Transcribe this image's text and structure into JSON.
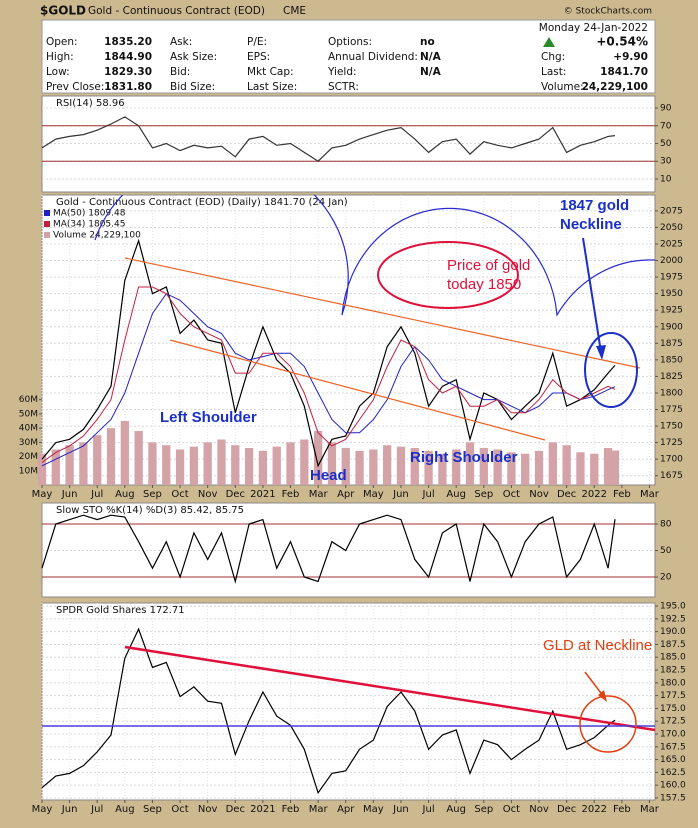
{
  "header": {
    "symbol": "$GOLD",
    "name": "Gold - Continuous Contract (EOD)",
    "exchange": "CME",
    "watermark": "© StockCharts.com",
    "date": "Monday  24-Jan-2022",
    "change_pct": "+0.54%",
    "rows": [
      [
        {
          "label": "Open:",
          "value": "1835.20"
        },
        {
          "label": "Ask:"
        },
        {
          "label": "P/E:"
        },
        {
          "label": "Options:",
          "value": "no"
        }
      ],
      [
        {
          "label": "High:",
          "value": "1844.90"
        },
        {
          "label": "Ask Size:"
        },
        {
          "label": "EPS:"
        },
        {
          "label": "Annual Dividend:",
          "value": "N/A"
        }
      ],
      [
        {
          "label": "Low:",
          "value": "1829.30"
        },
        {
          "label": "Bid:"
        },
        {
          "label": "Mkt Cap:"
        },
        {
          "label": "Yield:",
          "value": "N/A"
        }
      ],
      [
        {
          "label": "Prev Close:",
          "value": "1831.80"
        },
        {
          "label": "Bid Size:"
        },
        {
          "label": "Last Size:"
        },
        {
          "label": "SCTR:"
        }
      ]
    ],
    "right": [
      {
        "label": "Chg:",
        "value": "+9.90"
      },
      {
        "label": "Last:",
        "value": "1841.70"
      },
      {
        "label": "Volume:",
        "value": "24,229,100"
      }
    ]
  },
  "chart_data": [
    {
      "type": "line",
      "title": "RSI(14) 58.96",
      "grid": true,
      "x": [
        0,
        0.5,
        1,
        1.5,
        2,
        2.5,
        3,
        3.5,
        4,
        4.5,
        5,
        5.5,
        6,
        6.5,
        7,
        7.5,
        8,
        8.5,
        9,
        9.5,
        10,
        10.5,
        11,
        11.5,
        12,
        12.5,
        13,
        13.5,
        14,
        14.5,
        15,
        15.5,
        16,
        16.5,
        17,
        17.5,
        18,
        18.5,
        19,
        19.5,
        20,
        20.5,
        20.75
      ],
      "xlim": [
        0,
        22.2
      ],
      "ylim": [
        -4.7,
        103.6
      ],
      "yticks": [
        10,
        30,
        50,
        70,
        90
      ],
      "reference_lines": [
        30,
        70
      ],
      "series": [
        {
          "color": "#333333",
          "values": [
            45,
            55,
            58,
            60,
            65,
            72,
            80,
            70,
            45,
            50,
            42,
            48,
            45,
            47,
            35,
            55,
            58,
            48,
            50,
            40,
            30,
            45,
            48,
            55,
            60,
            65,
            68,
            55,
            40,
            52,
            55,
            38,
            52,
            48,
            45,
            50,
            55,
            68,
            40,
            48,
            52,
            58,
            58.96
          ]
        }
      ]
    },
    {
      "type": "line",
      "title": "Gold - Continuous Contract (EOD) (Daily) 1841.70 (24 Jan)",
      "grid": true,
      "x": [
        0,
        0.5,
        1,
        1.5,
        2,
        2.5,
        3,
        3.5,
        4,
        4.5,
        5,
        5.5,
        6,
        6.5,
        7,
        7.5,
        8,
        8.5,
        9,
        9.5,
        10,
        10.5,
        11,
        11.5,
        12,
        12.5,
        13,
        13.5,
        14,
        14.5,
        15,
        15.5,
        16,
        16.5,
        17,
        17.5,
        18,
        18.5,
        19,
        19.5,
        20,
        20.5,
        20.75
      ],
      "xlim": [
        0,
        22.2
      ],
      "xticks": [
        {
          "value": 0,
          "label": "May"
        },
        {
          "value": 1,
          "label": "Jun"
        },
        {
          "value": 2,
          "label": "Jul"
        },
        {
          "value": 3,
          "label": "Aug"
        },
        {
          "value": 4,
          "label": "Sep"
        },
        {
          "value": 5,
          "label": "Oct"
        },
        {
          "value": 6,
          "label": "Nov"
        },
        {
          "value": 7,
          "label": "Dec"
        },
        {
          "value": 8,
          "label": "2021"
        },
        {
          "value": 9,
          "label": "Feb"
        },
        {
          "value": 10,
          "label": "Mar"
        },
        {
          "value": 11,
          "label": "Apr"
        },
        {
          "value": 12,
          "label": "May"
        },
        {
          "value": 13,
          "label": "Jun"
        },
        {
          "value": 14,
          "label": "Jul"
        },
        {
          "value": 15,
          "label": "Aug"
        },
        {
          "value": 16,
          "label": "Sep"
        },
        {
          "value": 17,
          "label": "Oct"
        },
        {
          "value": 18,
          "label": "Nov"
        },
        {
          "value": 19,
          "label": "Dec"
        },
        {
          "value": 20,
          "label": "2022"
        },
        {
          "value": 21,
          "label": "Feb"
        },
        {
          "value": 22,
          "label": "Mar"
        }
      ],
      "ylim": [
        1661,
        2099
      ],
      "yticks": [
        1675,
        1700,
        1725,
        1750,
        1775,
        1800,
        1825,
        1850,
        1875,
        1900,
        1925,
        1950,
        1975,
        2000,
        2025,
        2050,
        2075
      ],
      "y2lim": [
        0,
        204000000
      ],
      "y2ticks": [
        {
          "value": 10000000,
          "label": "10M"
        },
        {
          "value": 20000000,
          "label": "20M"
        },
        {
          "value": 30000000,
          "label": "30M"
        },
        {
          "value": 40000000,
          "label": "40M"
        },
        {
          "value": 50000000,
          "label": "50M"
        },
        {
          "value": 60000000,
          "label": "60M"
        }
      ],
      "series": [
        {
          "color": "#000000",
          "values": [
            1700,
            1725,
            1730,
            1745,
            1775,
            1810,
            1970,
            2030,
            1950,
            1960,
            1890,
            1910,
            1880,
            1875,
            1770,
            1840,
            1900,
            1850,
            1830,
            1780,
            1690,
            1730,
            1735,
            1780,
            1800,
            1870,
            1900,
            1860,
            1780,
            1810,
            1820,
            1730,
            1800,
            1790,
            1760,
            1780,
            1800,
            1860,
            1780,
            1790,
            1805,
            1830,
            1841.7
          ]
        },
        {
          "name": "MA(50) 1809.48",
          "color": "#2020c0",
          "values": [
            1690,
            1700,
            1710,
            1720,
            1740,
            1760,
            1800,
            1860,
            1920,
            1950,
            1940,
            1920,
            1900,
            1890,
            1860,
            1850,
            1855,
            1860,
            1860,
            1840,
            1800,
            1760,
            1740,
            1740,
            1760,
            1790,
            1840,
            1870,
            1850,
            1820,
            1810,
            1800,
            1790,
            1790,
            1780,
            1770,
            1780,
            1800,
            1800,
            1790,
            1795,
            1805,
            1809.48
          ]
        },
        {
          "name": "MA(34) 1805.45",
          "color": "#c02040",
          "values": [
            1695,
            1710,
            1720,
            1735,
            1760,
            1790,
            1880,
            1960,
            1960,
            1950,
            1920,
            1900,
            1890,
            1880,
            1830,
            1830,
            1860,
            1860,
            1840,
            1800,
            1740,
            1720,
            1730,
            1760,
            1790,
            1840,
            1880,
            1870,
            1820,
            1800,
            1810,
            1780,
            1780,
            1790,
            1770,
            1770,
            1790,
            1820,
            1800,
            1790,
            1800,
            1810,
            1805.45
          ]
        },
        {
          "name": "Volume 24,229,100",
          "color": "#d3a3a8",
          "axis": "y2",
          "values": [
            22000000,
            25000000,
            28000000,
            30000000,
            35000000,
            40000000,
            45000000,
            38000000,
            30000000,
            28000000,
            25000000,
            27000000,
            30000000,
            32000000,
            28000000,
            26000000,
            24000000,
            27000000,
            30000000,
            32000000,
            38000000,
            30000000,
            26000000,
            24000000,
            25000000,
            28000000,
            27000000,
            26000000,
            24000000,
            22000000,
            25000000,
            30000000,
            26000000,
            25000000,
            23000000,
            22000000,
            24000000,
            30000000,
            28000000,
            23000000,
            22000000,
            26000000,
            24229100
          ]
        }
      ],
      "annotations": [
        {
          "lines": [
            "Left Shoulder"
          ],
          "color": "#1a2fc8"
        },
        {
          "lines": [
            "Head"
          ],
          "color": "#1a2fc8"
        },
        {
          "lines": [
            "Right Shoulder"
          ],
          "color": "#1a2fc8"
        },
        {
          "lines": [
            "Price of gold",
            "today 1850"
          ],
          "color": "#e0103a"
        },
        {
          "lines": [
            "1847 gold",
            "Neckline"
          ],
          "color": "#1a2fc8"
        }
      ]
    },
    {
      "type": "line",
      "title": "Slow STO %K(14) %D(3) 85.42, 85.75",
      "grid": true,
      "x": [
        0,
        0.5,
        1,
        1.5,
        2,
        2.5,
        3,
        3.5,
        4,
        4.5,
        5,
        5.5,
        6,
        6.5,
        7,
        7.5,
        8,
        8.5,
        9,
        9.5,
        10,
        10.5,
        11,
        11.5,
        12,
        12.5,
        13,
        13.5,
        14,
        14.5,
        15,
        15.5,
        16,
        16.5,
        17,
        17.5,
        18,
        18.5,
        19,
        19.5,
        20,
        20.5,
        20.75
      ],
      "xlim": [
        0,
        22.2
      ],
      "ylim": [
        -2.6,
        103.8
      ],
      "yticks": [
        20,
        50,
        80
      ],
      "reference_lines": [
        20,
        80
      ],
      "series": [
        {
          "color": "#000000",
          "values": [
            30,
            80,
            85,
            90,
            85,
            90,
            88,
            60,
            30,
            60,
            20,
            70,
            40,
            70,
            15,
            80,
            85,
            30,
            60,
            20,
            15,
            60,
            50,
            80,
            85,
            90,
            85,
            40,
            20,
            70,
            80,
            15,
            80,
            60,
            20,
            60,
            80,
            88,
            20,
            40,
            80,
            30,
            85.42
          ]
        }
      ]
    },
    {
      "type": "line",
      "title": "SPDR Gold Shares 172.71",
      "grid": true,
      "x": [
        0,
        0.5,
        1,
        1.5,
        2,
        2.5,
        3,
        3.5,
        4,
        4.5,
        5,
        5.5,
        6,
        6.5,
        7,
        7.5,
        8,
        8.5,
        9,
        9.5,
        10,
        10.5,
        11,
        11.5,
        12,
        12.5,
        13,
        13.5,
        14,
        14.5,
        15,
        15.5,
        16,
        16.5,
        17,
        17.5,
        18,
        18.5,
        19,
        19.5,
        20,
        20.5,
        20.75
      ],
      "xlim": [
        0,
        22.2
      ],
      "xticks": [
        {
          "value": 0,
          "label": "May"
        },
        {
          "value": 1,
          "label": "Jun"
        },
        {
          "value": 2,
          "label": "Jul"
        },
        {
          "value": 3,
          "label": "Aug"
        },
        {
          "value": 4,
          "label": "Sep"
        },
        {
          "value": 5,
          "label": "Oct"
        },
        {
          "value": 6,
          "label": "Nov"
        },
        {
          "value": 7,
          "label": "Dec"
        },
        {
          "value": 8,
          "label": "2021"
        },
        {
          "value": 9,
          "label": "Feb"
        },
        {
          "value": 10,
          "label": "Mar"
        },
        {
          "value": 11,
          "label": "Apr"
        },
        {
          "value": 12,
          "label": "May"
        },
        {
          "value": 13,
          "label": "Jun"
        },
        {
          "value": 14,
          "label": "Jul"
        },
        {
          "value": 15,
          "label": "Aug"
        },
        {
          "value": 16,
          "label": "Sep"
        },
        {
          "value": 17,
          "label": "Oct"
        },
        {
          "value": 18,
          "label": "Nov"
        },
        {
          "value": 19,
          "label": "Dec"
        },
        {
          "value": 20,
          "label": "2022"
        },
        {
          "value": 21,
          "label": "Feb"
        },
        {
          "value": 22,
          "label": "Mar"
        }
      ],
      "ylim": [
        157.1,
        195.6
      ],
      "yticks": [
        157.5,
        {
          "value": 160,
          "label": "160.0"
        },
        162.5,
        {
          "value": 165,
          "label": "165.0"
        },
        167.5,
        {
          "value": 170,
          "label": "170.0"
        },
        172.5,
        {
          "value": 175,
          "label": "175.0"
        },
        177.5,
        {
          "value": 180,
          "label": "180.0"
        },
        182.5,
        {
          "value": 185,
          "label": "185.0"
        },
        187.5,
        {
          "value": 190,
          "label": "190.0"
        },
        192.5,
        {
          "value": 195,
          "label": "195.0"
        }
      ],
      "series": [
        {
          "color": "#000000",
          "values": [
            159.5,
            161.8,
            162.3,
            163.8,
            166.5,
            169.8,
            184.8,
            190.5,
            183,
            184,
            177.3,
            179.2,
            176.4,
            176,
            166,
            172.6,
            178.2,
            173.5,
            171.7,
            167,
            158.5,
            162.3,
            162.8,
            167,
            168.8,
            175.4,
            178.2,
            174.5,
            167,
            169.8,
            170.8,
            162.3,
            168.8,
            167.9,
            165,
            167,
            168.8,
            174.5,
            167,
            167.9,
            169.3,
            171.7,
            172.71
          ]
        }
      ],
      "annotations": [
        {
          "lines": [
            "GLD at Neckline"
          ],
          "color": "#e04010"
        }
      ]
    }
  ]
}
